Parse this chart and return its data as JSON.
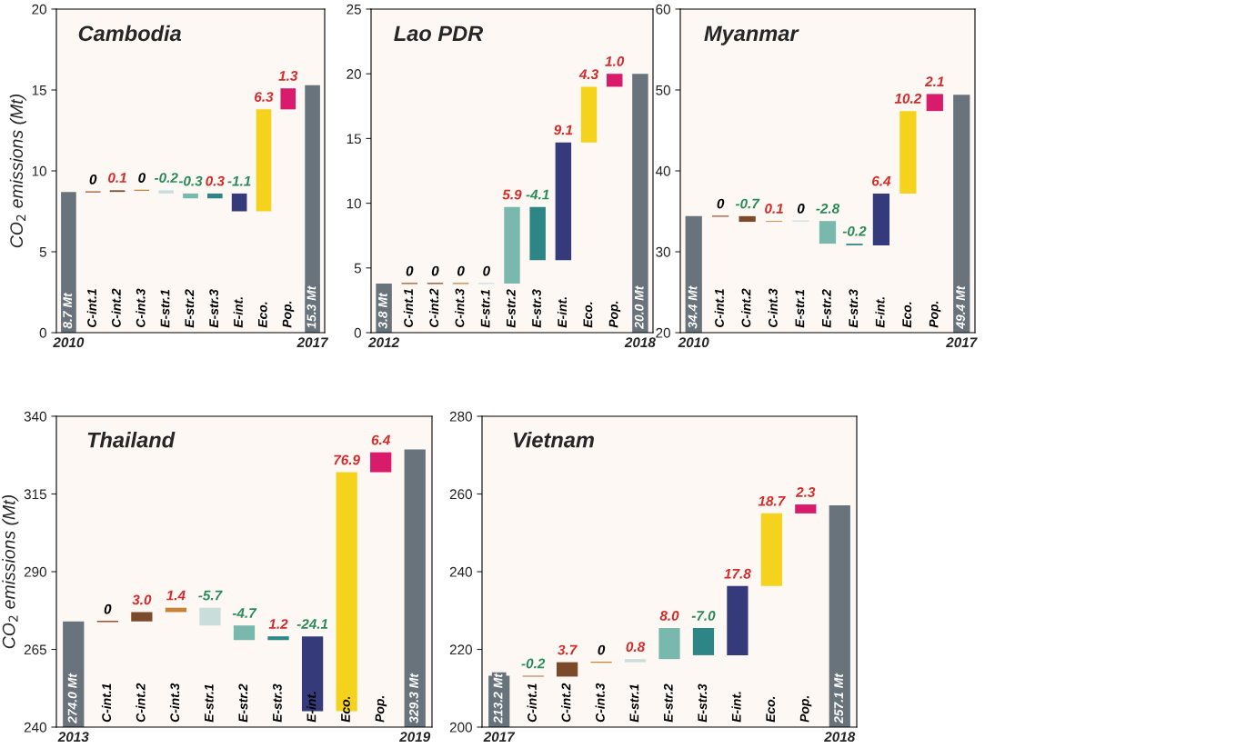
{
  "chart_data": [
    {
      "type": "bar",
      "title": "Cambodia",
      "ylabel": "CO$_{2}$ emissions (Mt)",
      "categories": [
        "2010",
        "C-int.1",
        "C-int.2",
        "C-int.3",
        "E-str.1",
        "E-str.2",
        "E-str.3",
        "E-int.",
        "Eco.",
        "Pop.",
        "2017"
      ],
      "values": [
        8.7,
        0,
        0.1,
        0,
        -0.2,
        -0.3,
        0.3,
        -1.1,
        6.3,
        1.3,
        15.3
      ],
      "base": [
        null,
        8.7,
        8.7,
        8.8,
        8.8,
        8.6,
        8.3,
        8.6,
        7.5,
        13.8,
        null
      ],
      "colors": [
        "#68737b",
        "#a0522d",
        "#7b4a2a",
        "#c8823a",
        "#c9dedb",
        "#78b8ad",
        "#2e8585",
        "#353a7a",
        "#f5d31c",
        "#d81b6b",
        "#68737b"
      ],
      "value_labels": [
        "8.7 Mt",
        "0",
        "0.1",
        "0",
        "-0.2",
        "-0.3",
        "0.3",
        "-1.1",
        "6.3",
        "1.3",
        "15.3 Mt"
      ],
      "ylim": [
        0,
        20
      ],
      "yticks": [
        0,
        5,
        10,
        15,
        20
      ]
    },
    {
      "type": "bar",
      "title": "Lao PDR",
      "categories": [
        "2012",
        "C-int.1",
        "C-int.2",
        "C-int.3",
        "E-str.1",
        "E-str.2",
        "E-str.3",
        "E-int.",
        "Eco.",
        "Pop.",
        "2018"
      ],
      "values": [
        3.8,
        0,
        0,
        0,
        0,
        5.9,
        -4.1,
        9.1,
        4.3,
        1.0,
        20.0
      ],
      "base": [
        null,
        3.8,
        3.8,
        3.8,
        3.8,
        3.8,
        9.7,
        5.6,
        14.7,
        19.0,
        null
      ],
      "colors": [
        "#68737b",
        "#a0522d",
        "#7b4a2a",
        "#c8823a",
        "#c9dedb",
        "#78b8ad",
        "#2e8585",
        "#353a7a",
        "#f5d31c",
        "#d81b6b",
        "#68737b"
      ],
      "value_labels": [
        "3.8 Mt",
        "0",
        "0",
        "0",
        "0",
        "5.9",
        "-4.1",
        "9.1",
        "4.3",
        "1.0",
        "20.0 Mt"
      ],
      "ylim": [
        0,
        25
      ],
      "yticks": [
        0,
        5,
        10,
        15,
        20,
        25
      ]
    },
    {
      "type": "bar",
      "title": "Myanmar",
      "categories": [
        "2010",
        "C-int.1",
        "C-int.2",
        "C-int.3",
        "E-str.1",
        "E-str.2",
        "E-str.3",
        "E-int.",
        "Eco.",
        "Pop.",
        "2017"
      ],
      "values": [
        34.4,
        0,
        -0.7,
        0.1,
        0,
        -2.8,
        -0.2,
        6.4,
        10.2,
        2.1,
        49.4
      ],
      "base": [
        null,
        34.4,
        34.4,
        33.7,
        33.8,
        33.8,
        31.0,
        30.8,
        37.2,
        47.4,
        null
      ],
      "colors": [
        "#68737b",
        "#a0522d",
        "#7b4a2a",
        "#c8823a",
        "#c9dedb",
        "#78b8ad",
        "#2e8585",
        "#353a7a",
        "#f5d31c",
        "#d81b6b",
        "#68737b"
      ],
      "value_labels": [
        "34.4 Mt",
        "0",
        "-0.7",
        "0.1",
        "0",
        "-2.8",
        "-0.2",
        "6.4",
        "10.2",
        "2.1",
        "49.4 Mt"
      ],
      "ylim": [
        20,
        60
      ],
      "yticks": [
        20,
        30,
        40,
        50,
        60
      ]
    },
    {
      "type": "bar",
      "title": "Thailand",
      "ylabel": "CO$_{2}$ emissions (Mt)",
      "categories": [
        "2013",
        "C-int.1",
        "C-int.2",
        "C-int.3",
        "E-str.1",
        "E-str.2",
        "E-str.3",
        "E-int.",
        "Eco.",
        "Pop.",
        "2019"
      ],
      "values": [
        274.0,
        0,
        3.0,
        1.4,
        -5.7,
        -4.7,
        1.2,
        -24.1,
        76.9,
        6.4,
        329.3
      ],
      "base": [
        null,
        274.0,
        274.0,
        277.0,
        278.4,
        272.7,
        268.0,
        269.2,
        245.1,
        322.0,
        null
      ],
      "colors": [
        "#68737b",
        "#a0522d",
        "#7b4a2a",
        "#c8823a",
        "#c9dedb",
        "#78b8ad",
        "#2e8585",
        "#353a7a",
        "#f5d31c",
        "#d81b6b",
        "#68737b"
      ],
      "value_labels": [
        "274.0 Mt",
        "0",
        "3.0",
        "1.4",
        "-5.7",
        "-4.7",
        "1.2",
        "-24.1",
        "76.9",
        "6.4",
        "329.3 Mt"
      ],
      "ylim": [
        240,
        340
      ],
      "yticks": [
        240,
        265,
        290,
        315,
        340
      ]
    },
    {
      "type": "bar",
      "title": "Vietnam",
      "categories": [
        "2017",
        "C-int.1",
        "C-int.2",
        "C-int.3",
        "E-str.1",
        "E-str.2",
        "E-str.3",
        "E-int.",
        "Eco.",
        "Pop.",
        "2018"
      ],
      "values": [
        213.2,
        -0.2,
        3.7,
        0,
        0.8,
        8.0,
        -7.0,
        17.8,
        18.7,
        2.3,
        257.1
      ],
      "base": [
        null,
        213.2,
        213.0,
        216.7,
        216.7,
        217.5,
        225.5,
        218.5,
        236.3,
        255.0,
        null
      ],
      "colors": [
        "#68737b",
        "#a0522d",
        "#7b4a2a",
        "#c8823a",
        "#c9dedb",
        "#78b8ad",
        "#2e8585",
        "#353a7a",
        "#f5d31c",
        "#d81b6b",
        "#68737b"
      ],
      "value_labels": [
        "213.2 Mt",
        "-0.2",
        "3.7",
        "0",
        "0.8",
        "8.0",
        "-7.0",
        "17.8",
        "18.7",
        "2.3",
        "257.1 Mt"
      ],
      "ylim": [
        200,
        280
      ],
      "yticks": [
        200,
        220,
        240,
        260,
        280
      ]
    }
  ]
}
